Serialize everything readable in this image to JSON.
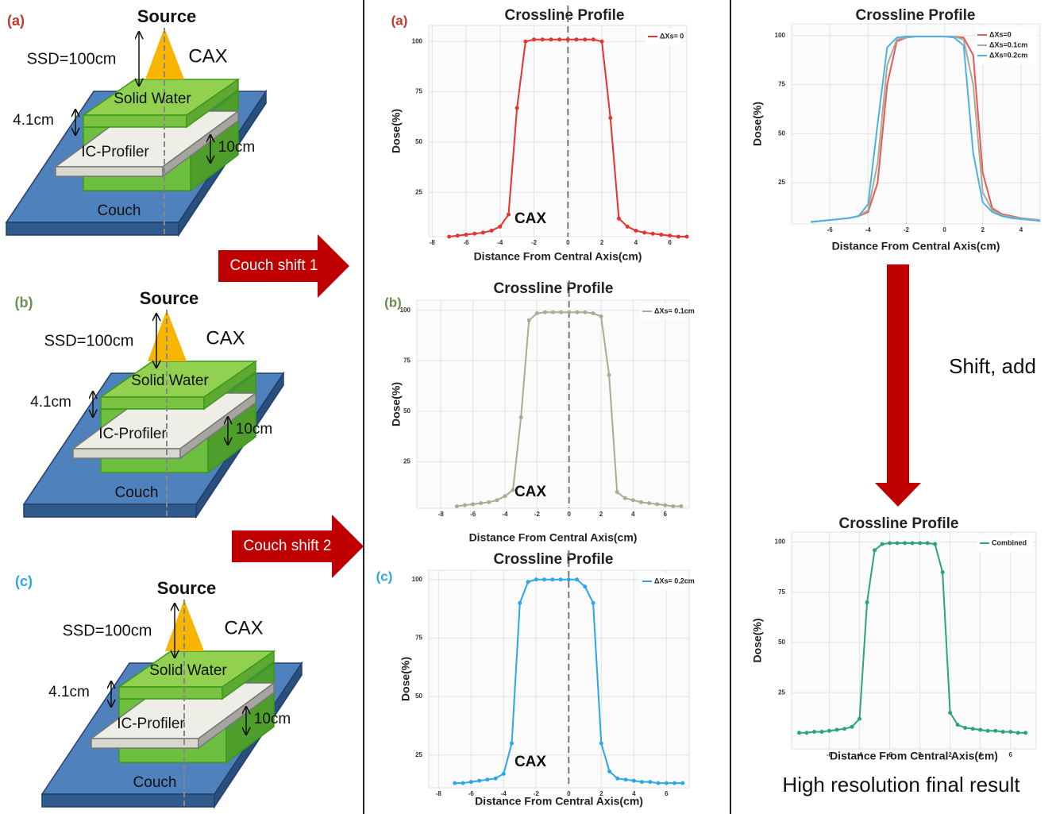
{
  "setups": [
    {
      "label": "(a)",
      "source": "Source",
      "ssd": "SSD=100cm",
      "cax": "CAX",
      "solid_water": "Solid Water",
      "thickness": "4.1cm",
      "profiler": "IC-Profiler",
      "depth": "10cm",
      "couch": "Couch"
    },
    {
      "label": "(b)",
      "source": "Source",
      "ssd": "SSD=100cm",
      "cax": "CAX",
      "solid_water": "Solid Water",
      "thickness": "4.1cm",
      "profiler": "IC-Profiler",
      "depth": "10cm",
      "couch": "Couch"
    },
    {
      "label": "(c)",
      "source": "Source",
      "ssd": "SSD=100cm",
      "cax": "CAX",
      "solid_water": "Solid Water",
      "thickness": "4.1cm",
      "profiler": "IC-Profiler",
      "depth": "10cm",
      "couch": "Couch"
    }
  ],
  "arrows": [
    "Couch shift 1",
    "Couch shift 2"
  ],
  "merge_label": "Shift, add",
  "caption": "High resolution final result",
  "chart_data": [
    {
      "type": "line",
      "panel_label": "(a)",
      "title": "Crossline Profile",
      "x_label": "Distance From Central Axis(cm)",
      "y_label": "Dose(%)",
      "annotation": "CAX",
      "markers": true,
      "grid": true,
      "legend": "upper right",
      "x": [
        -7,
        -6.5,
        -6,
        -5.5,
        -5,
        -4.5,
        -4,
        -3.5,
        -3,
        -2.5,
        -2,
        -1.5,
        -1,
        -0.5,
        0,
        0.5,
        1,
        1.5,
        2,
        2.5,
        3,
        3.5,
        4,
        4.5,
        5,
        5.5,
        6,
        6.5,
        7
      ],
      "series": [
        {
          "name": "ΔXs= 0",
          "color": "#e8322f",
          "values": [
            3,
            3.5,
            4,
            4.5,
            5,
            6,
            8,
            14,
            67,
            100,
            101,
            101,
            101,
            101,
            101,
            101,
            101,
            101,
            100,
            62,
            12,
            8,
            6,
            5,
            4.5,
            4,
            3.5,
            3,
            3
          ]
        }
      ],
      "xlim": [
        -8.2,
        7
      ],
      "xticks": [
        -8,
        -6,
        -4,
        -2,
        0,
        2,
        4,
        6
      ],
      "ylim": [
        3,
        108
      ],
      "yticks": [
        25,
        50,
        75,
        100
      ]
    },
    {
      "type": "line",
      "panel_label": "(b)",
      "title": "Crossline Profile",
      "x_label": "Distance From Central Axis(cm)",
      "y_label": "Dose(%)",
      "annotation": "CAX",
      "markers": true,
      "grid": true,
      "legend": "upper right",
      "x": [
        -7,
        -6.5,
        -6,
        -5.5,
        -5,
        -4.5,
        -4,
        -3.5,
        -3,
        -2.5,
        -2,
        -1.5,
        -1,
        -0.5,
        0,
        0.5,
        1,
        1.5,
        2,
        2.5,
        3,
        3.5,
        4,
        4.5,
        5,
        5.5,
        6,
        6.5,
        7
      ],
      "series": [
        {
          "name": "ΔXs= 0.1cm",
          "color": "#a7ad92",
          "values": [
            3,
            3.5,
            4,
            4.5,
            5,
            6,
            8,
            11,
            47,
            95,
            98.5,
            99,
            99,
            99,
            99,
            99,
            99,
            98.5,
            97,
            68,
            10,
            7,
            6,
            5,
            4.5,
            4,
            3.5,
            3,
            3
          ]
        }
      ],
      "xlim": [
        -9.5,
        7.5
      ],
      "xticks": [
        -8,
        -6,
        -4,
        -2,
        0,
        2,
        4,
        6
      ],
      "ylim": [
        2,
        105
      ],
      "yticks": [
        25,
        50,
        75,
        100
      ]
    },
    {
      "type": "line",
      "panel_label": "(c)",
      "title": "Crossline Profile",
      "x_label": "Distance From Central Axis(cm)",
      "y_label": "Dose(%)",
      "annotation": "CAX",
      "markers": true,
      "grid": true,
      "legend": "upper right",
      "x": [
        -7,
        -6.5,
        -6,
        -5.5,
        -5,
        -4.5,
        -4,
        -3.5,
        -3,
        -2.5,
        -2,
        -1.5,
        -1,
        -0.5,
        0,
        0.5,
        1,
        1.5,
        2,
        2.5,
        3,
        3.5,
        4,
        4.5,
        5,
        5.5,
        6,
        6.5,
        7
      ],
      "series": [
        {
          "name": "ΔXs= 0.2cm",
          "color": "#2aa7ea",
          "values": [
            13,
            13,
            13.5,
            14,
            14.5,
            15,
            17,
            30,
            90,
            99,
            100,
            100,
            100,
            100,
            100,
            100,
            97,
            90,
            30,
            18,
            15,
            14.5,
            14,
            13.5,
            13.5,
            13,
            13,
            13,
            13
          ]
        }
      ],
      "xlim": [
        -8.6,
        7.4
      ],
      "xticks": [
        -8,
        -6,
        -4,
        -2,
        0,
        2,
        4,
        6
      ],
      "ylim": [
        11,
        104
      ],
      "yticks": [
        25,
        50,
        75,
        100
      ]
    },
    {
      "type": "line",
      "title": "Crossline Profile",
      "x_label": "Distance From Central Axis(cm)",
      "y_label": "Dose(%)",
      "markers": false,
      "grid": true,
      "legend": "upper right",
      "x": [
        -7,
        -6.5,
        -6,
        -5.5,
        -5,
        -4.5,
        -4,
        -3.5,
        -3,
        -2.5,
        -2,
        -1.5,
        -1,
        -0.5,
        0,
        0.5,
        1,
        1.5,
        2,
        2.5,
        3,
        3.5,
        4,
        4.5,
        5
      ],
      "series": [
        {
          "name": "ΔXs=0",
          "color": "#e8575a",
          "values": [
            5,
            5.5,
            6,
            6.5,
            7,
            8,
            10,
            25,
            75,
            97,
            99,
            99.5,
            99.5,
            99.5,
            99.5,
            99.5,
            99,
            90,
            30,
            12,
            9,
            8,
            7,
            6.5,
            6
          ]
        },
        {
          "name": "ΔXs=0.1cm",
          "color": "#a7ad92",
          "values": [
            5,
            5.5,
            6,
            6.5,
            7,
            8,
            11,
            35,
            85,
            98,
            99,
            99.5,
            99.5,
            99.5,
            99.5,
            99.5,
            98,
            75,
            20,
            11,
            8.5,
            7.5,
            7,
            6.5,
            6
          ]
        },
        {
          "name": "ΔXs=0.2cm",
          "color": "#4fb0e8",
          "values": [
            5,
            5.5,
            6,
            6.5,
            7,
            8,
            14,
            55,
            94,
            99,
            99.5,
            99.5,
            99.5,
            99.5,
            99.5,
            99,
            95,
            40,
            15,
            10,
            8,
            7,
            6.5,
            6,
            5.5
          ]
        }
      ],
      "xlim": [
        -8,
        5
      ],
      "xticks": [
        -6,
        -4,
        -2,
        0,
        2,
        4
      ],
      "ylim": [
        4,
        106
      ],
      "yticks": [
        25,
        50,
        75,
        100
      ]
    },
    {
      "type": "line",
      "title": "Crossline Profile",
      "x_label": "Distance From Central Axis(cm)",
      "y_label": "Dose(%)",
      "markers": true,
      "grid": true,
      "legend": "upper right",
      "x": [
        -8,
        -7.5,
        -7,
        -6.5,
        -6,
        -5.5,
        -5,
        -4.5,
        -4,
        -3.5,
        -3,
        -2.5,
        -2,
        -1.5,
        -1,
        -0.5,
        0,
        0.5,
        1,
        1.5,
        2,
        2.5,
        3,
        3.5,
        4,
        4.5,
        5,
        5.5,
        6,
        6.5,
        7
      ],
      "series": [
        {
          "name": "Combined",
          "color": "#2aa57a",
          "values": [
            5,
            5,
            5.5,
            5.5,
            6,
            6.5,
            7,
            8,
            12,
            70,
            96,
            99,
            99.5,
            99.5,
            99.5,
            99.5,
            99.5,
            99.5,
            99,
            85,
            15,
            9,
            7.5,
            7,
            6.5,
            6,
            6,
            5.5,
            5.5,
            5,
            5
          ]
        }
      ],
      "xlim": [
        -8.5,
        7.7
      ],
      "xticks": [
        -6,
        -4,
        -2,
        0,
        2,
        4,
        6
      ],
      "ylim": [
        -3,
        105
      ],
      "yticks": [
        25,
        50,
        75,
        100
      ]
    }
  ]
}
